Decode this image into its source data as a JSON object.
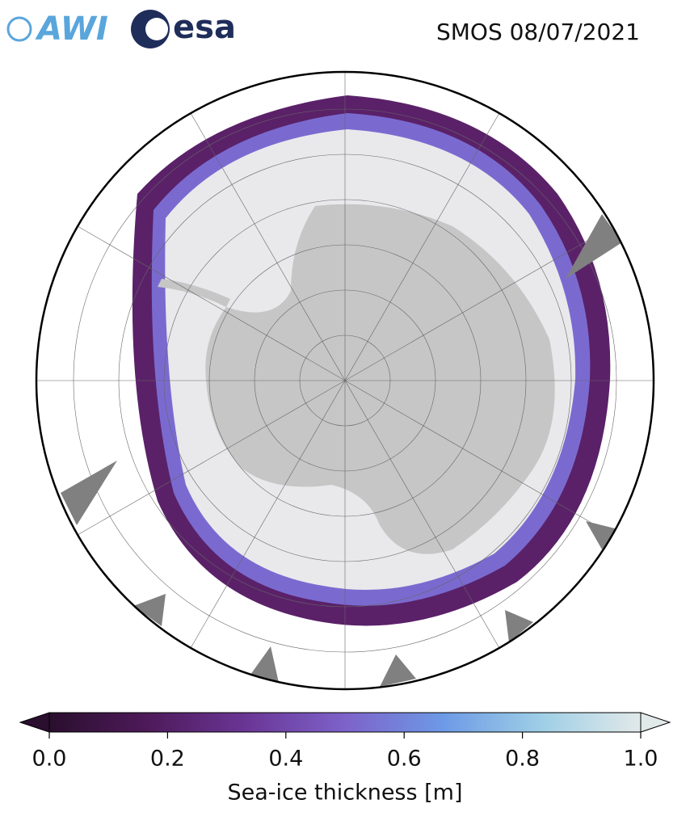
{
  "logos": [
    "AWI",
    "esa"
  ],
  "title": "SMOS 08/07/2021",
  "chart_data": {
    "type": "colorbar",
    "label": "Sea-ice thickness [m]",
    "xlim": [
      0,
      1
    ],
    "xticks": [
      {
        "value": 0,
        "label": "0.0"
      },
      0.2,
      0.4,
      0.6,
      0.8,
      {
        "value": 1,
        "label": "1.0"
      }
    ],
    "extend": "both",
    "colormap": [
      "#2a0f2e",
      "#4e1a5a",
      "#6a3696",
      "#7d62c9",
      "#6d9ae6",
      "#9fcfe6",
      "#e2e9e9"
    ]
  }
}
